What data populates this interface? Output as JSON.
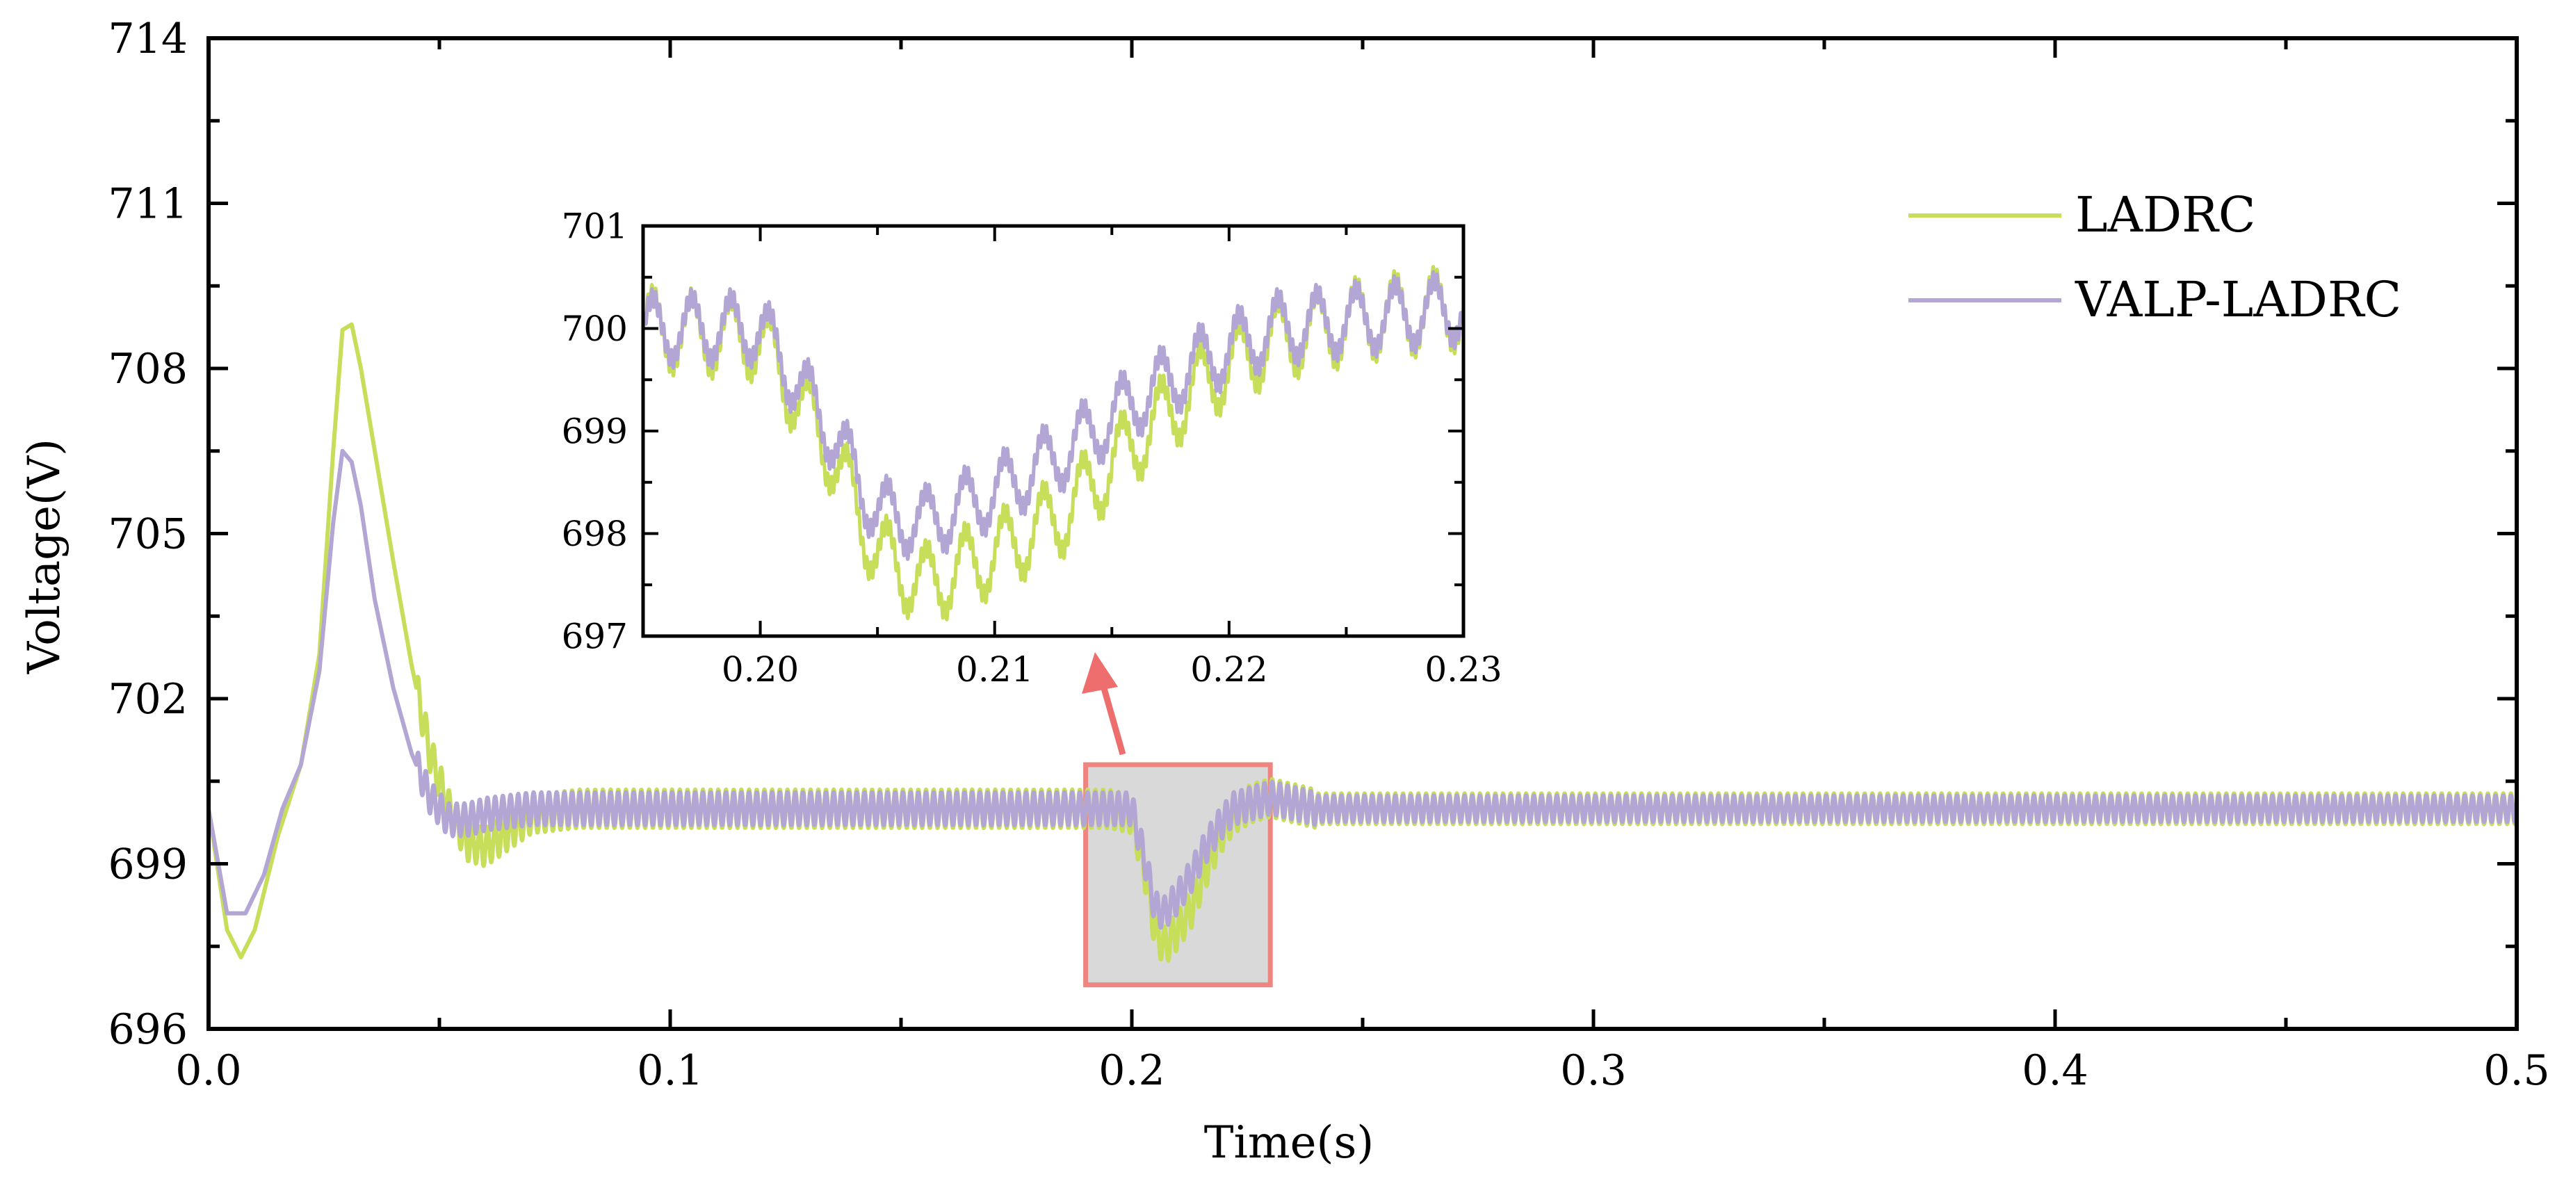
{
  "chart_data": {
    "type": "line",
    "title": "",
    "xlabel": "Time(s)",
    "ylabel": "Voltage(V)",
    "xlim": [
      0.0,
      0.5
    ],
    "ylim": [
      696,
      714
    ],
    "xticks": [
      "0.0",
      "0.1",
      "0.2",
      "0.3",
      "0.4",
      "0.5"
    ],
    "yticks": [
      "696",
      "699",
      "702",
      "705",
      "708",
      "711",
      "714"
    ],
    "legend": {
      "position": "top-right",
      "entries": [
        "LADRC",
        "VALP-LADRC"
      ]
    },
    "colors": {
      "LADRC": "#c6de5a",
      "VALP-LADRC": "#b3a6d4",
      "highlight_box": "#ee8580",
      "highlight_fill": "#d9d9d9",
      "arrow": "#ee6e6e"
    },
    "series": [
      {
        "name": "LADRC",
        "x": [
          0.0,
          0.004,
          0.007,
          0.01,
          0.015,
          0.02,
          0.024,
          0.027,
          0.029,
          0.031,
          0.033,
          0.036,
          0.04,
          0.044,
          0.048,
          0.052,
          0.056,
          0.06,
          0.065,
          0.07,
          0.08,
          0.1,
          0.15,
          0.19,
          0.195,
          0.2,
          0.203,
          0.205,
          0.207,
          0.21,
          0.213,
          0.216,
          0.219,
          0.222,
          0.226,
          0.23,
          0.24,
          0.3,
          0.4,
          0.5
        ],
        "y": [
          700.0,
          697.8,
          697.3,
          697.8,
          699.5,
          700.8,
          702.8,
          706.5,
          708.7,
          708.8,
          708.0,
          706.5,
          704.5,
          702.6,
          701.0,
          700.0,
          699.4,
          699.3,
          699.6,
          699.9,
          700.0,
          700.0,
          700.0,
          700.0,
          700.0,
          699.9,
          698.8,
          697.8,
          697.5,
          697.8,
          698.2,
          698.9,
          699.5,
          699.9,
          700.1,
          700.2,
          700.0,
          700.0,
          700.0,
          700.0
        ],
        "ripple": 0.35
      },
      {
        "name": "VALP-LADRC",
        "x": [
          0.0,
          0.004,
          0.008,
          0.012,
          0.016,
          0.02,
          0.024,
          0.027,
          0.029,
          0.031,
          0.033,
          0.036,
          0.04,
          0.044,
          0.048,
          0.052,
          0.056,
          0.06,
          0.065,
          0.07,
          0.08,
          0.1,
          0.15,
          0.19,
          0.195,
          0.2,
          0.203,
          0.205,
          0.207,
          0.21,
          0.213,
          0.216,
          0.219,
          0.222,
          0.226,
          0.23,
          0.24,
          0.3,
          0.4,
          0.5
        ],
        "y": [
          700.0,
          698.1,
          698.1,
          698.8,
          700.0,
          700.8,
          702.5,
          705.2,
          706.5,
          706.3,
          705.5,
          703.8,
          702.2,
          701.0,
          700.2,
          699.8,
          699.8,
          699.9,
          699.95,
          700.0,
          700.0,
          700.0,
          700.0,
          700.0,
          700.0,
          700.0,
          699.0,
          698.2,
          698.1,
          698.4,
          698.8,
          699.3,
          699.7,
          700.0,
          700.1,
          700.2,
          700.0,
          700.0,
          700.0,
          700.0
        ],
        "ripple": 0.3
      }
    ],
    "inset": {
      "xlim": [
        0.195,
        0.23
      ],
      "ylim": [
        697,
        701
      ],
      "xticks": [
        "0.20",
        "0.21",
        "0.22",
        "0.23"
      ],
      "yticks": [
        "697",
        "698",
        "699",
        "700",
        "701"
      ],
      "highlight_region": {
        "x": [
          0.19,
          0.23
        ],
        "y": [
          696.8,
          700.8
        ]
      }
    }
  }
}
